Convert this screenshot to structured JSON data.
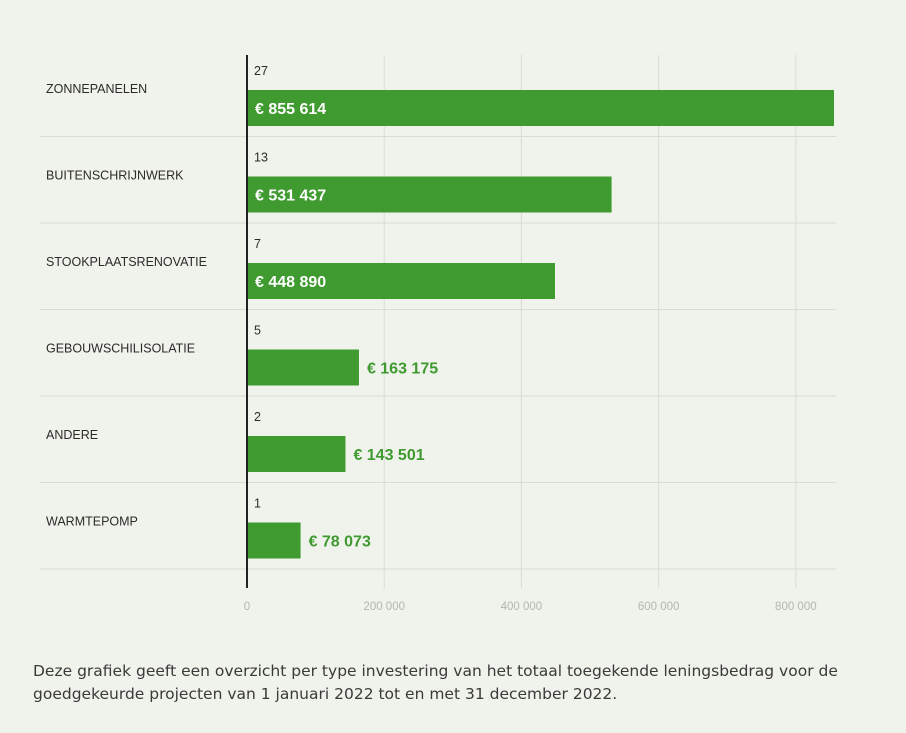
{
  "chart_data": {
    "type": "bar",
    "orientation": "horizontal",
    "categories": [
      "ZONNEPANELEN",
      "BUITENSCHRIJNWERK",
      "STOOKPLAATSRENOVATIE",
      "GEBOUWSCHILISOLATIE",
      "ANDERE",
      "WARMTEPOMP"
    ],
    "values": [
      855614,
      531437,
      448890,
      163175,
      143501,
      78073
    ],
    "value_labels": [
      "€ 855 614",
      "€ 531 437",
      "€ 448 890",
      "€ 163 175",
      "€ 143 501",
      "€ 78 073"
    ],
    "counts": [
      "27",
      "13",
      "7",
      "5",
      "2",
      "1"
    ],
    "xlim": [
      0,
      860000
    ],
    "ticks": [
      0,
      200000,
      400000,
      600000,
      800000
    ],
    "tick_labels": [
      "0",
      "200 000",
      "400 000",
      "600 000",
      "800 000"
    ],
    "grid": true,
    "bar_color": "#3f9a2f",
    "title": "",
    "xlabel": "",
    "ylabel": ""
  },
  "caption": "Deze grafiek geeft een overzicht per type investering van het totaal toegekende leningsbedrag voor de goedgekeurde projecten van 1 januari 2022 tot en met 31 december 2022.",
  "colors": {
    "background": "#f0f2ec",
    "bar": "#3f9a2f",
    "grid": "#d9dbd5",
    "axis": "#222222"
  }
}
